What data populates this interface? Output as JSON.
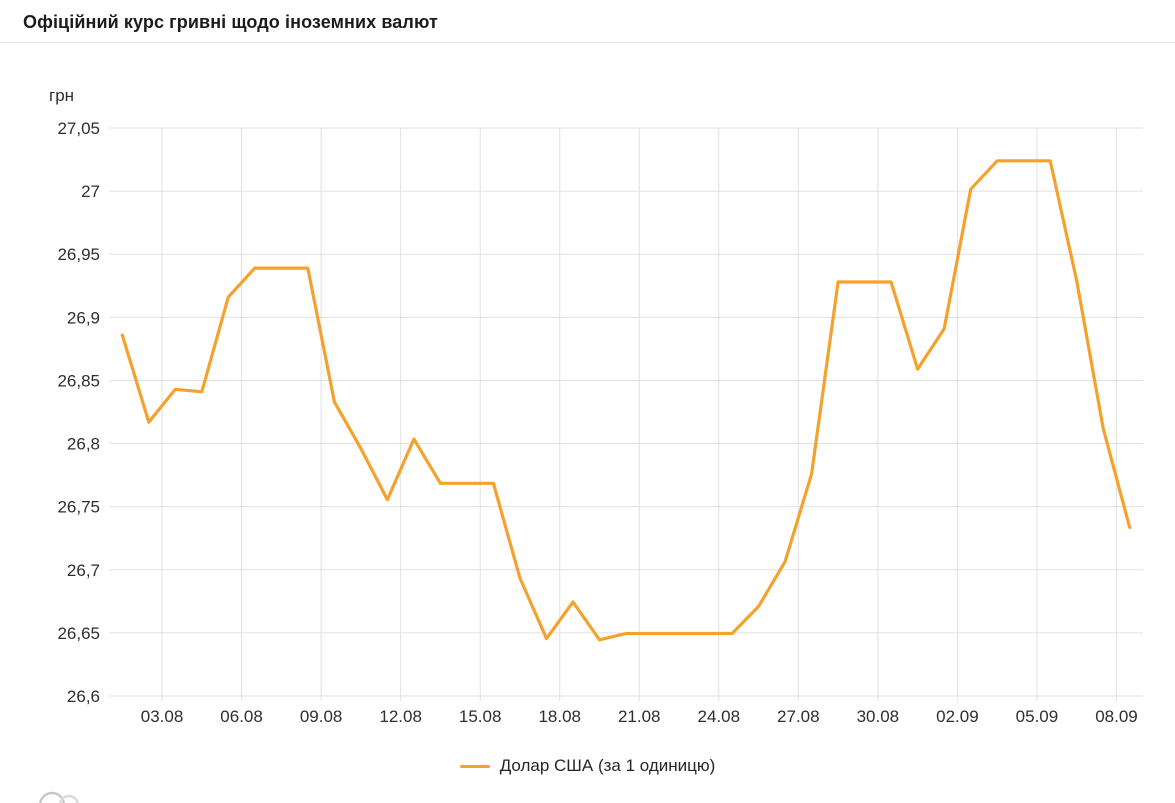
{
  "header": {
    "title": "Офіційний курс гривні щодо іноземних валют"
  },
  "chart_data": {
    "type": "line",
    "title": "Офіційний курс гривні щодо іноземних валют",
    "ylabel": "грн",
    "series_label": "Долар США (за 1 одиницю)",
    "color": "#f4a12e",
    "grid": true,
    "legend_position": "bottom",
    "ylim": [
      26.6,
      27.05
    ],
    "y_tick_values": [
      27.05,
      27,
      26.95,
      26.9,
      26.85,
      26.8,
      26.75,
      26.7,
      26.65,
      26.6
    ],
    "y_tick_labels": [
      "27,05",
      "27",
      "26,95",
      "26,9",
      "26,85",
      "26,8",
      "26,75",
      "26,7",
      "26,65",
      "26,6"
    ],
    "x": [
      "01.08",
      "02.08",
      "03.08",
      "04.08",
      "05.08",
      "06.08",
      "07.08",
      "08.08",
      "09.08",
      "10.08",
      "11.08",
      "12.08",
      "13.08",
      "14.08",
      "15.08",
      "16.08",
      "17.08",
      "18.08",
      "19.08",
      "20.08",
      "21.08",
      "22.08",
      "23.08",
      "24.08",
      "25.08",
      "26.08",
      "27.08",
      "28.08",
      "29.08",
      "30.08",
      "31.08",
      "01.09",
      "02.09",
      "03.09",
      "04.09",
      "05.09",
      "06.09",
      "07.09",
      "08.09"
    ],
    "values": [
      26.886,
      26.817,
      26.843,
      26.841,
      26.916,
      26.939,
      26.939,
      26.939,
      26.833,
      26.796,
      26.7555,
      26.8035,
      26.7685,
      26.7685,
      26.7685,
      26.6935,
      26.6455,
      26.6745,
      26.6445,
      26.6495,
      26.6495,
      26.6495,
      26.6495,
      26.6495,
      26.671,
      26.7065,
      26.776,
      26.928,
      26.928,
      26.928,
      26.859,
      26.891,
      27.0015,
      27.024,
      27.024,
      27.024,
      26.929,
      26.812,
      26.7335
    ],
    "x_tick_indices": [
      2,
      5,
      8,
      11,
      14,
      17,
      20,
      23,
      26,
      29,
      32,
      35,
      38
    ],
    "x_tick_labels": [
      "03.08",
      "06.08",
      "09.08",
      "12.08",
      "15.08",
      "18.08",
      "21.08",
      "24.08",
      "27.08",
      "30.08",
      "02.09",
      "05.09",
      "08.09"
    ]
  }
}
